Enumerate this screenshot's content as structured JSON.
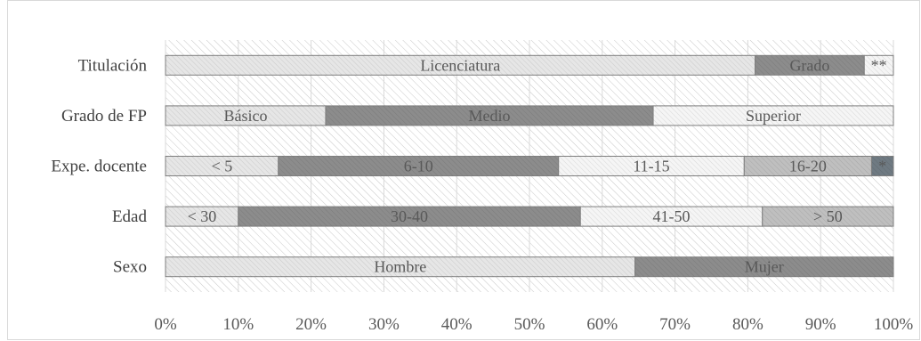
{
  "chart_data": {
    "type": "bar",
    "orientation": "horizontal",
    "stacked": "percent",
    "title": "",
    "xlabel": "",
    "ylabel": "",
    "xlim": [
      0,
      100
    ],
    "x_ticks": [
      "0%",
      "10%",
      "20%",
      "30%",
      "40%",
      "50%",
      "60%",
      "70%",
      "80%",
      "90%",
      "100%"
    ],
    "grid": true,
    "legend": "none",
    "categories": [
      "Titulación",
      "Grado de FP",
      "Expe. docente",
      "Edad",
      "Sexo"
    ],
    "bars": [
      {
        "category": "Titulación",
        "segments": [
          {
            "label": "Licenciatura",
            "value": 81,
            "color": "#e6e6e6"
          },
          {
            "label": "Grado",
            "value": 15,
            "color": "#8c8c8c"
          },
          {
            "label": "**",
            "value": 4,
            "color": "#f5f5f5"
          }
        ]
      },
      {
        "category": "Grado de FP",
        "segments": [
          {
            "label": "Básico",
            "value": 22,
            "color": "#e6e6e6"
          },
          {
            "label": "Medio",
            "value": 45,
            "color": "#8c8c8c"
          },
          {
            "label": "Superior",
            "value": 33,
            "color": "#f5f5f5"
          }
        ]
      },
      {
        "category": "Expe. docente",
        "segments": [
          {
            "label": "< 5",
            "value": 15.5,
            "color": "#e6e6e6"
          },
          {
            "label": "6-10",
            "value": 38.5,
            "color": "#8c8c8c"
          },
          {
            "label": "11-15",
            "value": 25.5,
            "color": "#f5f5f5"
          },
          {
            "label": "16-20",
            "value": 17.5,
            "color": "#bfbfbf"
          },
          {
            "label": "*",
            "value": 3,
            "color": "#6f7a82"
          }
        ]
      },
      {
        "category": "Edad",
        "segments": [
          {
            "label": "< 30",
            "value": 10,
            "color": "#e6e6e6"
          },
          {
            "label": "30-40",
            "value": 47,
            "color": "#8c8c8c"
          },
          {
            "label": "41-50",
            "value": 25,
            "color": "#f5f5f5"
          },
          {
            "label": "> 50",
            "value": 18,
            "color": "#bfbfbf"
          }
        ]
      },
      {
        "category": "Sexo",
        "segments": [
          {
            "label": "Hombre",
            "value": 64.5,
            "color": "#e6e6e6"
          },
          {
            "label": "Mujer",
            "value": 35.5,
            "color": "#8c8c8c"
          }
        ]
      }
    ]
  }
}
